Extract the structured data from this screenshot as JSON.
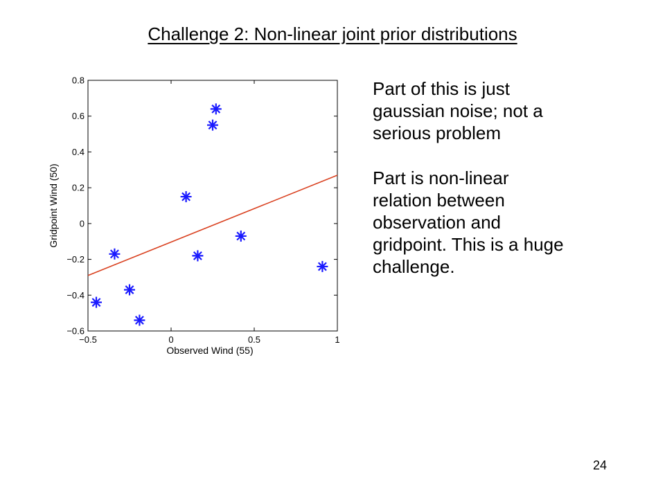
{
  "slide": {
    "title": "Challenge 2: Non-linear joint prior distributions",
    "paragraphs": [
      "Part of this is just\ngaussian noise; not a\nserious problem",
      "Part is non-linear\nrelation between\nobservation and\ngridpoint. This is a huge\nchallenge."
    ],
    "page_number": "24"
  },
  "colors": {
    "points": "#1a1aff",
    "fit_line": "#d9401f",
    "axes": "#000000"
  },
  "chart_data": {
    "type": "scatter",
    "xlabel": "Observed Wind (55)",
    "ylabel": "Gridpoint Wind (50)",
    "xlim": [
      -0.5,
      1
    ],
    "ylim": [
      -0.6,
      0.8
    ],
    "xticks": [
      -0.5,
      0,
      0.5,
      1
    ],
    "xtick_labels": [
      "−0.5",
      "0",
      "0.5",
      "1"
    ],
    "yticks": [
      -0.6,
      -0.4,
      -0.2,
      0,
      0.2,
      0.4,
      0.6,
      0.8
    ],
    "ytick_labels": [
      "−0.6",
      "−0.4",
      "−0.2",
      "0",
      "0.2",
      "0.4",
      "0.6",
      "0.8"
    ],
    "grid": false,
    "marker": "asterisk",
    "points": [
      {
        "x": -0.45,
        "y": -0.44
      },
      {
        "x": -0.34,
        "y": -0.17
      },
      {
        "x": -0.25,
        "y": -0.37
      },
      {
        "x": -0.19,
        "y": -0.54
      },
      {
        "x": 0.09,
        "y": 0.15
      },
      {
        "x": 0.16,
        "y": -0.18
      },
      {
        "x": 0.25,
        "y": 0.55
      },
      {
        "x": 0.27,
        "y": 0.64
      },
      {
        "x": 0.42,
        "y": -0.07
      },
      {
        "x": 0.91,
        "y": -0.24
      }
    ],
    "fit_line": {
      "x": [
        -0.5,
        1
      ],
      "y": [
        -0.29,
        0.27
      ]
    }
  }
}
